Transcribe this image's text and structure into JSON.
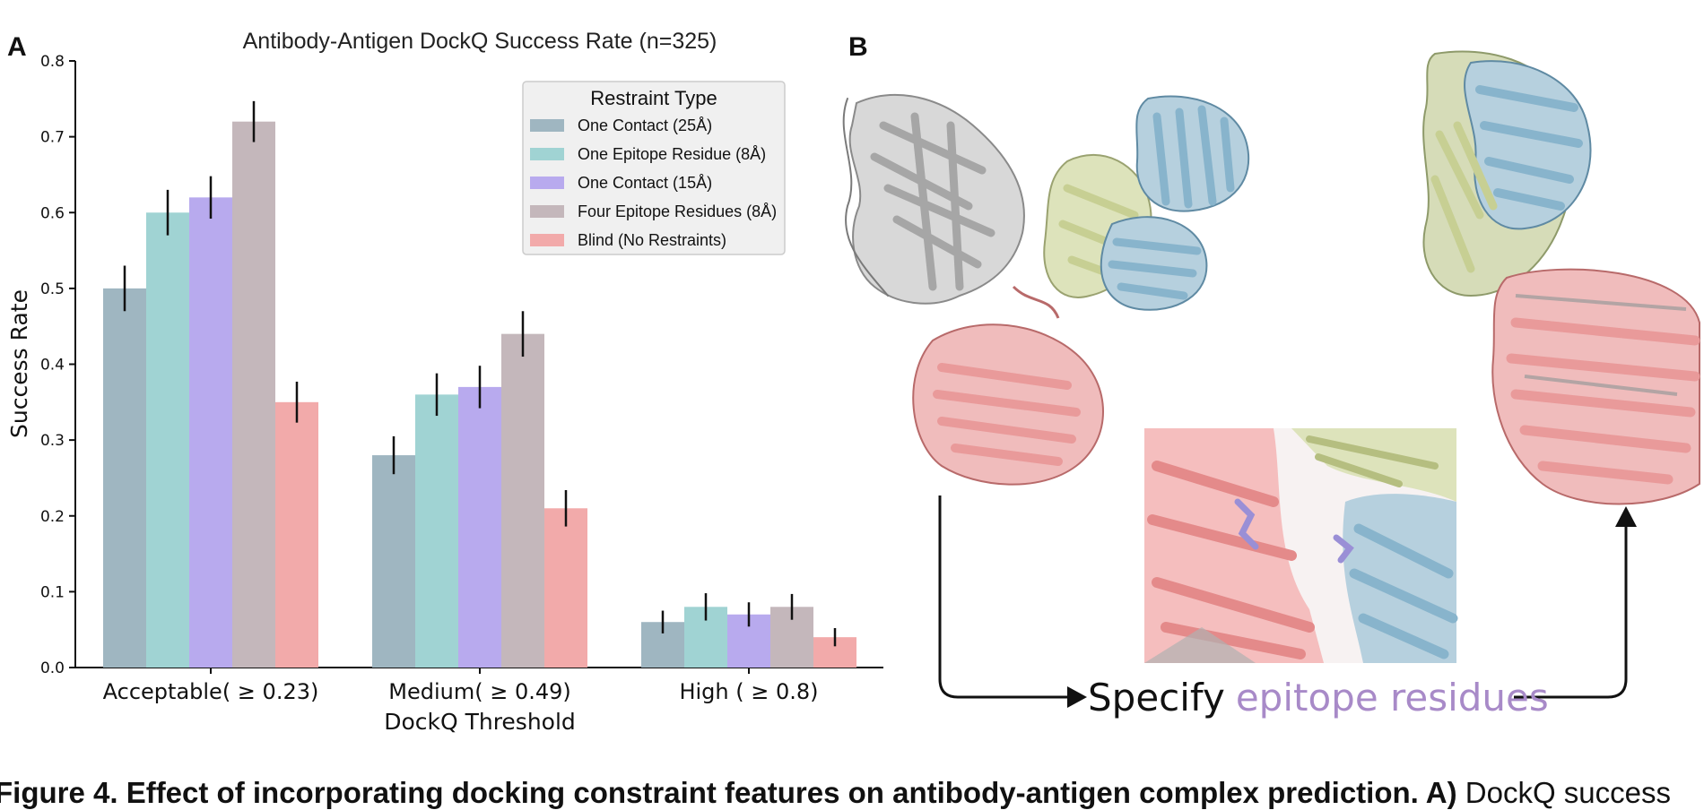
{
  "panels": {
    "a_label": "A",
    "b_label": "B"
  },
  "chart_data": {
    "type": "bar",
    "title": "Antibody-Antigen DockQ Success Rate (n=325)",
    "xlabel": "DockQ Threshold",
    "ylabel": "Success Rate",
    "ylim": [
      0,
      0.8
    ],
    "yticks": [
      "0.0",
      "0.1",
      "0.2",
      "0.3",
      "0.4",
      "0.5",
      "0.6",
      "0.7",
      "0.8"
    ],
    "categories": [
      "Acceptable( ≥ 0.23)",
      "Medium( ≥ 0.49)",
      "High ( ≥ 0.8)"
    ],
    "legend_title": "Restraint Type",
    "legend_position": "top-right",
    "grid": false,
    "series": [
      {
        "name": "One Contact (25Å)",
        "color": "#9fb6c1",
        "values": [
          0.5,
          0.28,
          0.06
        ],
        "err": [
          0.03,
          0.025,
          0.015
        ]
      },
      {
        "name": "One Epitope Residue (8Å)",
        "color": "#a0d3d3",
        "values": [
          0.6,
          0.36,
          0.08
        ],
        "err": [
          0.03,
          0.028,
          0.018
        ]
      },
      {
        "name": "One Contact (15Å)",
        "color": "#b8aaee",
        "values": [
          0.62,
          0.37,
          0.07
        ],
        "err": [
          0.028,
          0.028,
          0.016
        ]
      },
      {
        "name": "Four Epitope Residues (8Å)",
        "color": "#c4b7bb",
        "values": [
          0.72,
          0.44,
          0.08
        ],
        "err": [
          0.027,
          0.03,
          0.017
        ]
      },
      {
        "name": "Blind (No Restraints)",
        "color": "#f2aaaa",
        "values": [
          0.35,
          0.21,
          0.04
        ],
        "err": [
          0.027,
          0.024,
          0.012
        ]
      }
    ]
  },
  "structure_panel": {
    "specify_text": "Specify",
    "epitope_text": "epitope residues",
    "colors": {
      "antigen": "#e99a9a",
      "heavy": "#88b4cc",
      "light": "#cbd3a0",
      "gray": "#9a9a9a",
      "residue": "#9a8fd6",
      "epitope_text": "#a88ac8"
    }
  },
  "caption": {
    "bold": "Figure 4. Effect of incorporating docking constraint features on antibody-antigen complex prediction. A)",
    "rest": " DockQ success"
  }
}
